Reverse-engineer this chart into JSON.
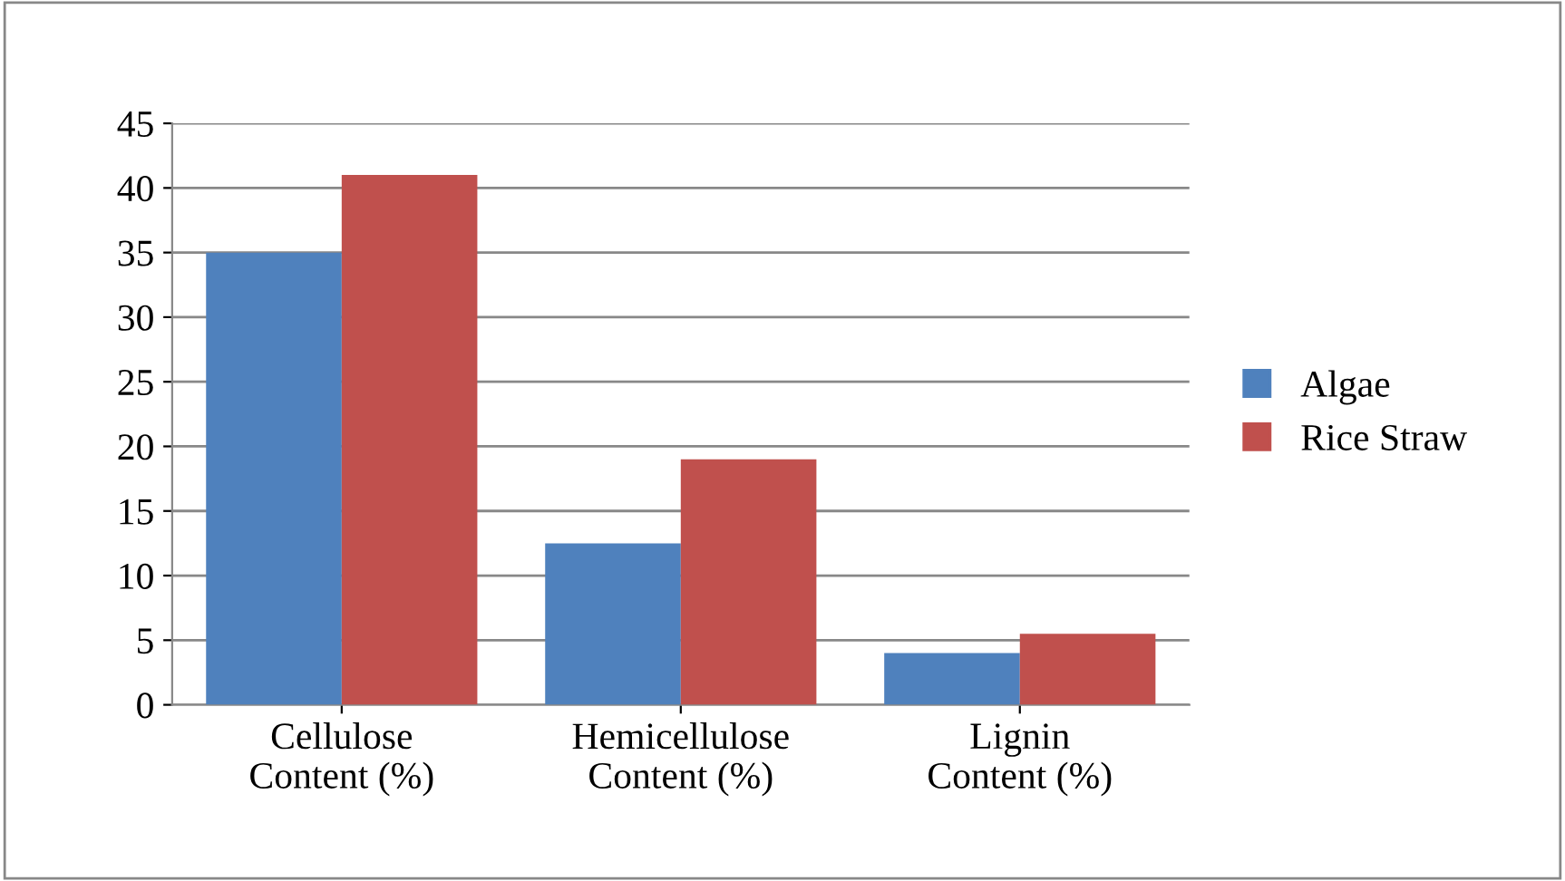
{
  "chart_data": {
    "type": "bar",
    "categories": [
      "Cellulose\nContent (%)",
      "Hemicellulose\nContent (%)",
      "Lignin\nContent (%)"
    ],
    "series": [
      {
        "name": "Algae",
        "color": "#4f81bd",
        "values": [
          35,
          12.5,
          4
        ]
      },
      {
        "name": "Rice Straw",
        "color": "#c0504d",
        "values": [
          41,
          19,
          5.5
        ]
      }
    ],
    "ylim": [
      0,
      45
    ],
    "yticks": [
      0,
      5,
      10,
      15,
      20,
      25,
      30,
      35,
      40,
      45
    ],
    "grid": "y",
    "legend": "right"
  }
}
